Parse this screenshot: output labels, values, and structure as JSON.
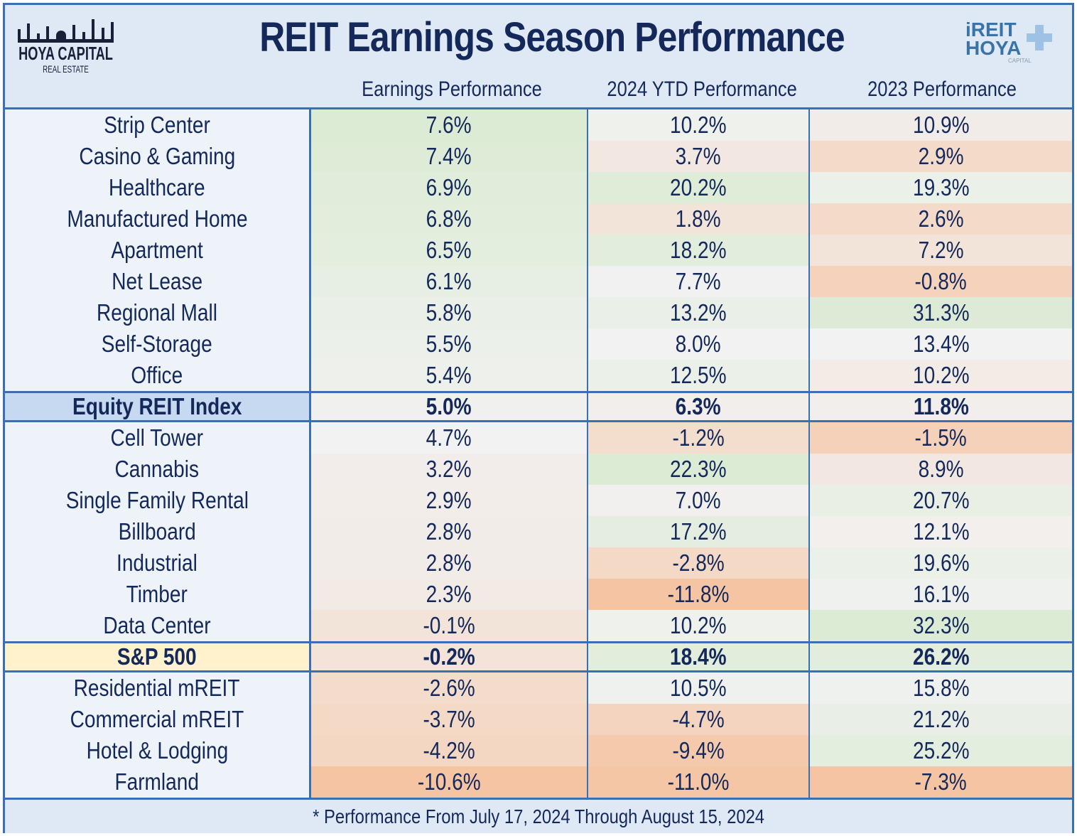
{
  "header": {
    "title": "REIT Earnings Season Performance",
    "logo_left": {
      "line1": "HOYA CAPITAL",
      "line2": "REAL ESTATE"
    },
    "logo_right": {
      "line1": "iREIT",
      "line2": "HOYA",
      "line3": "CAPITAL"
    }
  },
  "chart_data": {
    "type": "table",
    "title": "REIT Earnings Season Performance",
    "columns": [
      "Earnings Performance",
      "2024 YTD Performance",
      "2023 Performance"
    ],
    "color_scale": {
      "high": "#dcebd4",
      "mid": "#f2f2f2",
      "low": "#f5c4a2"
    },
    "rows": [
      {
        "label": "Strip Center",
        "values": [
          "7.6%",
          "10.2%",
          "10.9%"
        ]
      },
      {
        "label": "Casino & Gaming",
        "values": [
          "7.4%",
          "3.7%",
          "2.9%"
        ]
      },
      {
        "label": "Healthcare",
        "values": [
          "6.9%",
          "20.2%",
          "19.3%"
        ]
      },
      {
        "label": "Manufactured Home",
        "values": [
          "6.8%",
          "1.8%",
          "2.6%"
        ]
      },
      {
        "label": "Apartment",
        "values": [
          "6.5%",
          "18.2%",
          "7.2%"
        ]
      },
      {
        "label": "Net Lease",
        "values": [
          "6.1%",
          "7.7%",
          "-0.8%"
        ]
      },
      {
        "label": "Regional Mall",
        "values": [
          "5.8%",
          "13.2%",
          "31.3%"
        ]
      },
      {
        "label": "Self-Storage",
        "values": [
          "5.5%",
          "8.0%",
          "13.4%"
        ]
      },
      {
        "label": "Office",
        "values": [
          "5.4%",
          "12.5%",
          "10.2%"
        ]
      },
      {
        "label": "Equity REIT Index",
        "values": [
          "5.0%",
          "6.3%",
          "11.8%"
        ],
        "highlight": "index"
      },
      {
        "label": "Cell Tower",
        "values": [
          "4.7%",
          "-1.2%",
          "-1.5%"
        ]
      },
      {
        "label": "Cannabis",
        "values": [
          "3.2%",
          "22.3%",
          "8.9%"
        ]
      },
      {
        "label": "Single Family Rental",
        "values": [
          "2.9%",
          "7.0%",
          "20.7%"
        ]
      },
      {
        "label": "Billboard",
        "values": [
          "2.8%",
          "17.2%",
          "12.1%"
        ]
      },
      {
        "label": "Industrial",
        "values": [
          "2.8%",
          "-2.8%",
          "19.6%"
        ]
      },
      {
        "label": "Timber",
        "values": [
          "2.3%",
          "-11.8%",
          "16.1%"
        ]
      },
      {
        "label": "Data Center",
        "values": [
          "-0.1%",
          "10.2%",
          "32.3%"
        ]
      },
      {
        "label": "S&P 500",
        "values": [
          "-0.2%",
          "18.4%",
          "26.2%"
        ],
        "highlight": "sp"
      },
      {
        "label": "Residential mREIT",
        "values": [
          "-2.6%",
          "10.5%",
          "15.8%"
        ]
      },
      {
        "label": "Commercial mREIT",
        "values": [
          "-3.7%",
          "-4.7%",
          "21.2%"
        ]
      },
      {
        "label": "Hotel & Lodging",
        "values": [
          "-4.2%",
          "-9.4%",
          "25.2%"
        ]
      },
      {
        "label": "Farmland",
        "values": [
          "-10.6%",
          "-11.0%",
          "-7.3%"
        ]
      }
    ]
  },
  "footer": "* Performance From July 17, 2024 Through August 15, 2024"
}
